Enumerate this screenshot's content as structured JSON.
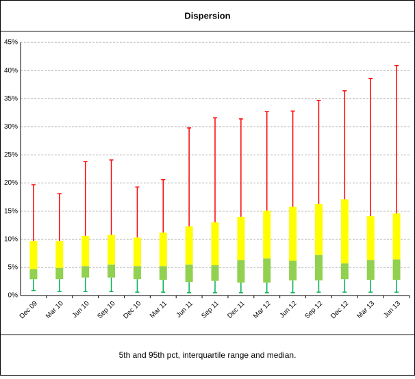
{
  "chart_data": {
    "type": "box",
    "title": "Dispersion",
    "caption": "5th and 95th pct, interquartile range and median.",
    "categories": [
      "Dec 09",
      "Mar 10",
      "Jun 10",
      "Sep 10",
      "Dec 10",
      "Mar 11",
      "Jun 11",
      "Sep 11",
      "Dec 11",
      "Mar 12",
      "Jun 12",
      "Sep 12",
      "Dec 12",
      "Mar 13",
      "Jun 13"
    ],
    "p5": [
      0.9,
      0.7,
      0.7,
      0.7,
      0.6,
      0.6,
      0.5,
      0.5,
      0.5,
      0.5,
      0.5,
      0.6,
      0.6,
      0.6,
      0.6
    ],
    "q1": [
      2.9,
      2.9,
      3.2,
      3.2,
      2.9,
      2.8,
      2.4,
      2.6,
      2.3,
      2.3,
      2.7,
      2.7,
      2.9,
      2.8,
      2.8
    ],
    "median": [
      4.7,
      4.9,
      5.2,
      5.5,
      5.2,
      5.2,
      5.5,
      5.4,
      6.3,
      6.6,
      6.2,
      7.2,
      5.7,
      6.3,
      6.4
    ],
    "q3": [
      9.7,
      9.7,
      10.6,
      10.8,
      10.3,
      11.2,
      12.3,
      13.0,
      14.0,
      15.1,
      15.8,
      16.3,
      17.1,
      14.1,
      14.6
    ],
    "p95": [
      19.7,
      18.1,
      23.8,
      24.1,
      19.3,
      20.6,
      29.8,
      31.6,
      31.4,
      32.7,
      32.8,
      34.7,
      36.4,
      38.6,
      40.9
    ],
    "colors": {
      "upper_whisker": "#ff0000",
      "upper_box": "#ffff00",
      "lower_box": "#92d050",
      "lower_whisker": "#00b050"
    },
    "ylim": [
      0,
      45
    ],
    "yticks": [
      {
        "value": 0,
        "label": "0%"
      },
      {
        "value": 5,
        "label": "5%"
      },
      {
        "value": 10,
        "label": "10%"
      },
      {
        "value": 15,
        "label": "15%"
      },
      {
        "value": 20,
        "label": "20%"
      },
      {
        "value": 25,
        "label": "25%"
      },
      {
        "value": 30,
        "label": "30%"
      },
      {
        "value": 35,
        "label": "35%"
      },
      {
        "value": 40,
        "label": "40%"
      },
      {
        "value": 45,
        "label": "45%"
      }
    ],
    "grid": true
  }
}
